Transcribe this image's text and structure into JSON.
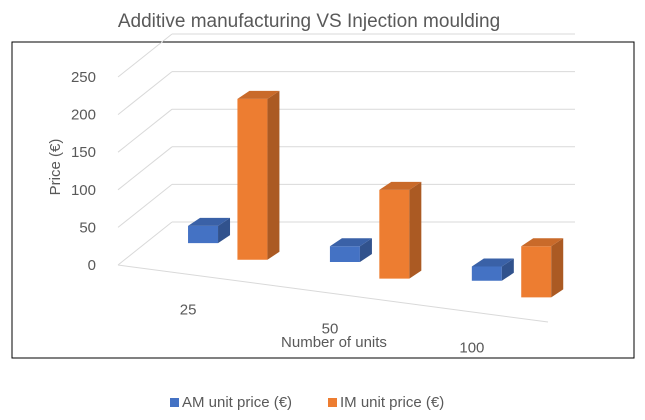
{
  "chart_data": {
    "type": "bar",
    "title": "Additive manufacturing VS Injection moulding",
    "xlabel": "Number of units",
    "ylabel": "Price (€)",
    "categories": [
      "25",
      "50",
      "100"
    ],
    "yticks": [
      "0",
      "50",
      "100",
      "150",
      "200",
      "250"
    ],
    "ylim": [
      0,
      250
    ],
    "grid": true,
    "legend_position": "bottom",
    "series": [
      {
        "name": "AM unit price (€)",
        "values": [
          23,
          21,
          19
        ],
        "color": "#4472C4"
      },
      {
        "name": "IM unit price (€)",
        "values": [
          214,
          118,
          68
        ],
        "color": "#ED7D31"
      }
    ]
  }
}
